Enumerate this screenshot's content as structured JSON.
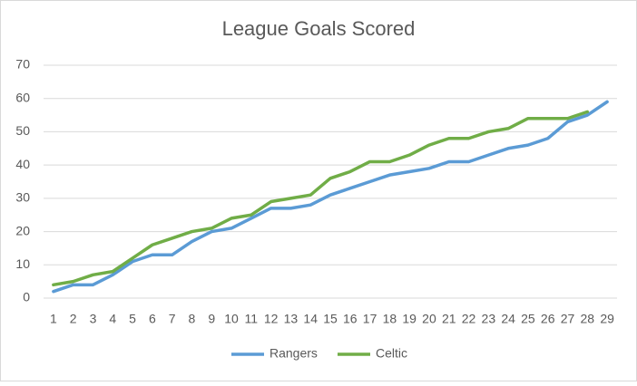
{
  "chart_data": {
    "type": "line",
    "title": "League Goals Scored",
    "categories": [
      "1",
      "2",
      "3",
      "4",
      "5",
      "6",
      "7",
      "8",
      "9",
      "10",
      "11",
      "12",
      "13",
      "14",
      "15",
      "16",
      "17",
      "18",
      "19",
      "20",
      "21",
      "22",
      "23",
      "24",
      "25",
      "26",
      "27",
      "28",
      "29"
    ],
    "series": [
      {
        "name": "Rangers",
        "color": "#5b9bd5",
        "values": [
          2,
          4,
          4,
          7,
          11,
          13,
          13,
          17,
          20,
          21,
          24,
          27,
          27,
          28,
          31,
          33,
          35,
          37,
          38,
          39,
          41,
          41,
          43,
          45,
          46,
          48,
          53,
          55,
          59
        ]
      },
      {
        "name": "Celtic",
        "color": "#70ad47",
        "values": [
          4,
          5,
          7,
          8,
          12,
          16,
          18,
          20,
          21,
          24,
          25,
          29,
          30,
          31,
          36,
          38,
          41,
          41,
          43,
          46,
          48,
          48,
          50,
          51,
          54,
          54,
          54,
          56,
          null
        ]
      }
    ],
    "ylim": [
      0,
      70
    ],
    "yticks": [
      0,
      10,
      20,
      30,
      40,
      50,
      60,
      70
    ],
    "grid": true,
    "legend": "bottom"
  }
}
